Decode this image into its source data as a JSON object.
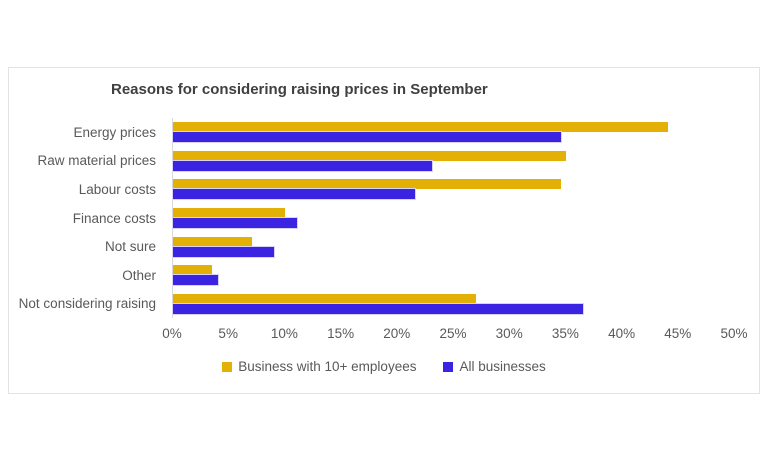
{
  "chart_data": {
    "type": "bar",
    "orientation": "horizontal",
    "title": "Reasons for considering raising prices in September",
    "categories": [
      "Energy prices",
      "Raw material prices",
      "Labour costs",
      "Finance costs",
      "Not sure",
      "Other",
      "Not considering raising"
    ],
    "series": [
      {
        "name": "Business with 10+ employees",
        "color": "#e3b005",
        "values": [
          44,
          35,
          34.5,
          10,
          7,
          3.5,
          27
        ]
      },
      {
        "name": "All businesses",
        "color": "#3b24e1",
        "values": [
          34.5,
          23,
          21.5,
          11,
          9,
          4,
          36.5
        ]
      }
    ],
    "xlim": [
      0,
      50
    ],
    "x_tick_step": 5,
    "x_ticks": [
      "0%",
      "5%",
      "10%",
      "15%",
      "20%",
      "25%",
      "30%",
      "35%",
      "40%",
      "45%",
      "50%"
    ],
    "grid": "off",
    "legend_position": "bottom",
    "axis_line_color": "#d9d9d9",
    "title_color": "#404040",
    "text_color": "#595959",
    "chart_border_color": "#e3e3e3"
  }
}
